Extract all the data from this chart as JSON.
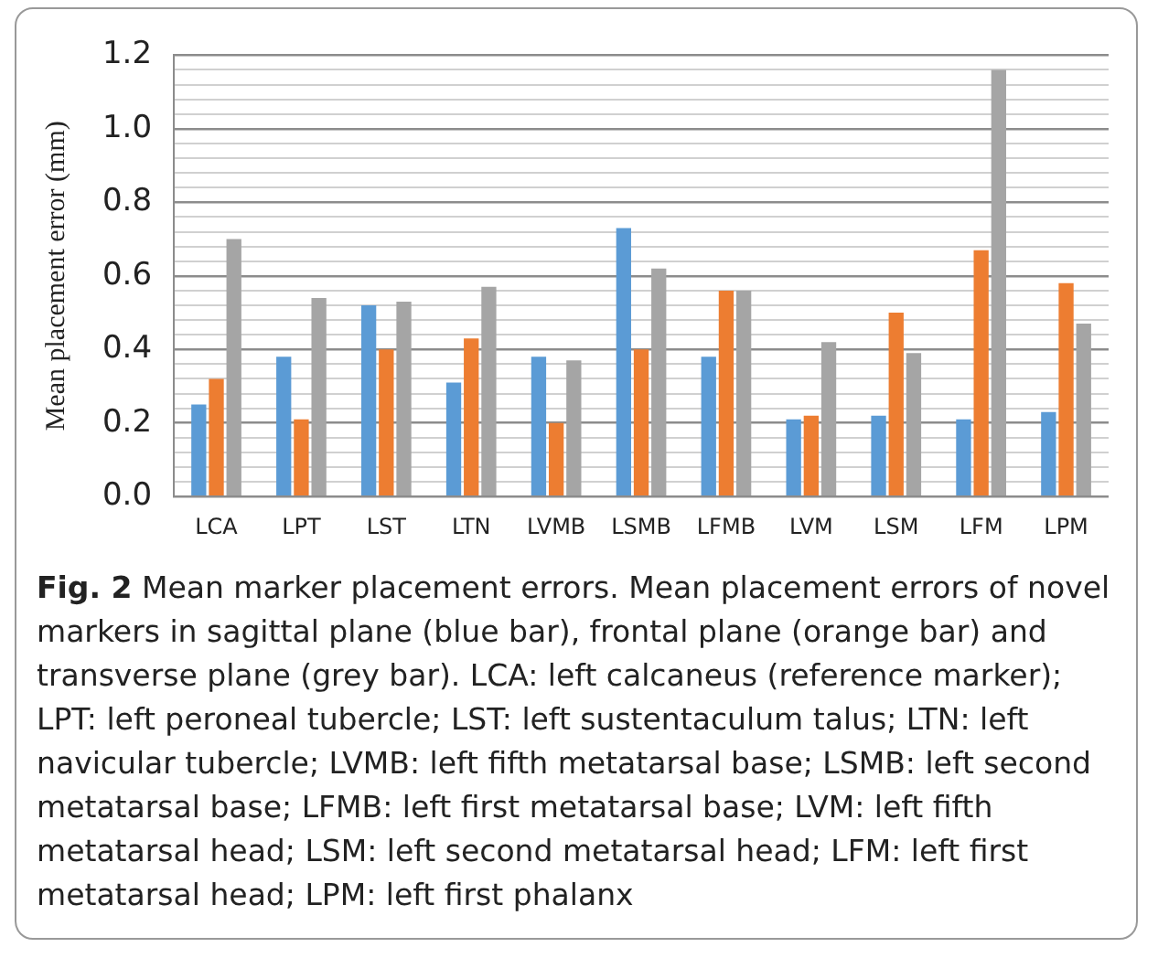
{
  "chart_data": {
    "type": "bar",
    "ylabel": "Mean placement error (mm)",
    "categories": [
      "LCA",
      "LPT",
      "LST",
      "LTN",
      "LVMB",
      "LSMB",
      "LFMB",
      "LVM",
      "LSM",
      "LFM",
      "LPM"
    ],
    "series": [
      {
        "color": "#5b9bd5",
        "values": [
          0.25,
          0.38,
          0.52,
          0.31,
          0.38,
          0.73,
          0.38,
          0.21,
          0.22,
          0.21,
          0.23
        ]
      },
      {
        "color": "#ed7d31",
        "values": [
          0.32,
          0.21,
          0.4,
          0.43,
          0.2,
          0.4,
          0.56,
          0.22,
          0.5,
          0.67,
          0.58
        ]
      },
      {
        "color": "#a5a5a5",
        "values": [
          0.7,
          0.54,
          0.53,
          0.57,
          0.37,
          0.62,
          0.56,
          0.42,
          0.39,
          1.16,
          0.47
        ]
      }
    ],
    "ylim": [
      0,
      1.2
    ],
    "yticks": [
      {
        "value": 0,
        "label": "0.0"
      },
      {
        "value": 0.04,
        "label": null
      },
      {
        "value": 0.08,
        "label": null
      },
      {
        "value": 0.12,
        "label": null
      },
      {
        "value": 0.16,
        "label": null
      },
      {
        "value": 0.2,
        "label": "0.2"
      },
      {
        "value": 0.24,
        "label": null
      },
      {
        "value": 0.28,
        "label": null
      },
      {
        "value": 0.32,
        "label": null
      },
      {
        "value": 0.36,
        "label": null
      },
      {
        "value": 0.4,
        "label": "0.4"
      },
      {
        "value": 0.44,
        "label": null
      },
      {
        "value": 0.48,
        "label": null
      },
      {
        "value": 0.52,
        "label": null
      },
      {
        "value": 0.56,
        "label": null
      },
      {
        "value": 0.6,
        "label": "0.6"
      },
      {
        "value": 0.64,
        "label": null
      },
      {
        "value": 0.68,
        "label": null
      },
      {
        "value": 0.72,
        "label": null
      },
      {
        "value": 0.76,
        "label": null
      },
      {
        "value": 0.8,
        "label": "0.8"
      },
      {
        "value": 0.84,
        "label": null
      },
      {
        "value": 0.88,
        "label": null
      },
      {
        "value": 0.92,
        "label": null
      },
      {
        "value": 0.96,
        "label": null
      },
      {
        "value": 1.0,
        "label": "1.0"
      },
      {
        "value": 1.04,
        "label": null
      },
      {
        "value": 1.08,
        "label": null
      },
      {
        "value": 1.12,
        "label": null
      },
      {
        "value": 1.16,
        "label": null
      },
      {
        "value": 1.2,
        "label": "1.2"
      }
    ],
    "grid": "y",
    "legend": false,
    "annotations": [
      "Fig. 2",
      "Mean marker placement errors. Mean placement errors of novel markers in sagittal plane (blue bar), frontal plane (orange bar) and transverse plane (grey bar). LCA: left calcaneus (reference marker); LPT: left peroneal tubercle; LST: left sustentaculum talus; LTN: left navicular tubercle; LVMB: left fifth metatarsal base; LSMB: left second metatarsal base; LFMB: left first metatarsal base; LVM: left fifth metatarsal head; LSM: left second metatarsal head; LFM: left first metatarsal head; LPM: left first phalanx"
    ]
  }
}
